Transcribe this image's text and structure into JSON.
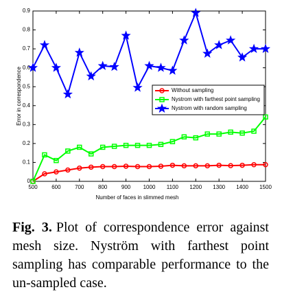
{
  "chart_data": {
    "type": "line",
    "x_label": "Number of faces in slimmed mesh",
    "y_label": "Error in correspondence",
    "x": [
      500,
      550,
      600,
      650,
      700,
      750,
      800,
      850,
      900,
      950,
      1000,
      1050,
      1100,
      1150,
      1200,
      1250,
      1300,
      1350,
      1400,
      1450,
      1500
    ],
    "series": [
      {
        "name": "Without sampling",
        "color": "#ff0000",
        "marker": "circle",
        "values": [
          0.0,
          0.04,
          0.05,
          0.06,
          0.07,
          0.075,
          0.078,
          0.078,
          0.08,
          0.078,
          0.078,
          0.08,
          0.085,
          0.082,
          0.082,
          0.082,
          0.085,
          0.083,
          0.085,
          0.088,
          0.088
        ]
      },
      {
        "name": "Nystrom with farthest point sampling",
        "color": "#00ff00",
        "marker": "square",
        "values": [
          0.0,
          0.14,
          0.11,
          0.16,
          0.18,
          0.145,
          0.18,
          0.185,
          0.19,
          0.19,
          0.19,
          0.195,
          0.21,
          0.235,
          0.23,
          0.25,
          0.25,
          0.26,
          0.255,
          0.265,
          0.34
        ]
      },
      {
        "name": "Nystrom with random sampling",
        "color": "#0000ff",
        "marker": "star",
        "values": [
          0.6,
          0.72,
          0.6,
          0.46,
          0.68,
          0.555,
          0.61,
          0.605,
          0.77,
          0.495,
          0.61,
          0.6,
          0.585,
          0.745,
          0.89,
          0.675,
          0.72,
          0.745,
          0.655,
          0.7,
          0.7
        ]
      }
    ],
    "xlim": [
      500,
      1500
    ],
    "xticks": [
      500,
      600,
      700,
      800,
      900,
      1000,
      1100,
      1200,
      1300,
      1400,
      1500
    ],
    "ylim": [
      0,
      0.9
    ],
    "yticks": [
      0,
      0.1,
      0.2,
      0.3,
      0.4,
      0.5,
      0.6,
      0.7,
      0.8,
      0.9
    ],
    "grid": false,
    "legend": "center-right"
  },
  "caption": {
    "label": "Fig. 3.",
    "text": "Plot of correspondence error against mesh size. Nyström with farthest point sampling has comparable performance to the un-sampled case."
  }
}
